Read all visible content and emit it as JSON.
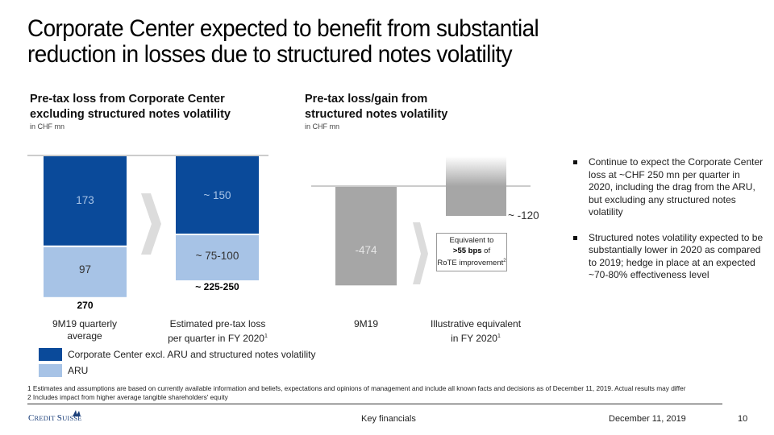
{
  "title_line1": "Corporate Center expected to benefit from substantial",
  "title_line2": "reduction in losses due to structured notes volatility",
  "colors": {
    "cc_blue": "#0a4a9a",
    "aru_lightblue": "#a7c3e6",
    "grey_bar": "#a6a6a6",
    "chevron": "#dcdcdc"
  },
  "chart_data": [
    {
      "type": "bar",
      "stacked": true,
      "title": "Pre-tax loss from Corporate Center excluding structured notes volatility",
      "title_line1": "Pre-tax loss from Corporate Center",
      "title_line2": "excluding structured notes volatility",
      "unit": "in CHF mn",
      "categories": [
        "9M19 quarterly average",
        "Estimated pre-tax loss per quarter in FY 2020"
      ],
      "category_lines": [
        [
          "9M19 quarterly",
          "average"
        ],
        [
          "Estimated pre-tax loss",
          "per quarter in FY 2020"
        ]
      ],
      "category_superscripts": [
        "",
        "1"
      ],
      "series": [
        {
          "name": "Corporate Center excl. ARU and structured notes volatility",
          "values": [
            173,
            150
          ],
          "labels": [
            "173",
            "~ 150"
          ]
        },
        {
          "name": "ARU",
          "values": [
            97,
            87.5
          ],
          "labels": [
            "97",
            "~ 75-100"
          ]
        }
      ],
      "totals": [
        "270",
        "~ 225-250"
      ],
      "orientation": "downward from baseline",
      "legend": [
        {
          "label": "Corporate Center excl. ARU and structured notes volatility",
          "color": "#0a4a9a"
        },
        {
          "label": "ARU",
          "color": "#a7c3e6"
        }
      ],
      "legend_position": "bottom-left"
    },
    {
      "type": "bar",
      "title": "Pre-tax loss/gain from structured notes volatility",
      "title_line1": "Pre-tax loss/gain from",
      "title_line2": "structured notes volatility",
      "unit": "in CHF mn",
      "categories": [
        "9M19",
        "Illustrative equivalent in FY 2020"
      ],
      "category_lines": [
        [
          "9M19"
        ],
        [
          "Illustrative equivalent",
          "in FY 2020"
        ]
      ],
      "category_superscripts": [
        "",
        "1"
      ],
      "values": [
        -474,
        -120
      ],
      "labels": [
        "-474",
        "~ -120"
      ],
      "annotation": {
        "line1": "Equivalent to",
        "bold": ">55 bps",
        "line2_rest": " of",
        "line3": "RoTE improvement",
        "sup": "2"
      }
    }
  ],
  "bullets": [
    "Continue to expect the Corporate Center loss at ~CHF 250 mn per quarter in 2020, including the drag from the ARU, but excluding any structured notes volatility",
    "Structured notes volatility expected to be substantially lower in 2020 as compared to 2019; hedge in place at an expected ~70-80% effectiveness level"
  ],
  "footnotes": [
    "1 Estimates and assumptions are based on currently available information and beliefs, expectations and opinions of management and include all known facts and decisions as of December 11, 2019. Actual results may differ",
    "2 Includes impact from higher average tangible shareholders' equity"
  ],
  "footer": {
    "logo_text_big1": "C",
    "logo_text_small1": "REDIT ",
    "logo_text_big2": "S",
    "logo_text_small2": "UISSE",
    "section": "Key financials",
    "date": "December 11, 2019",
    "page": "10"
  },
  "icons": {
    "logo": "sail-icon",
    "chevron": "chevron-right-icon",
    "bullet": "square-bullet-icon"
  }
}
